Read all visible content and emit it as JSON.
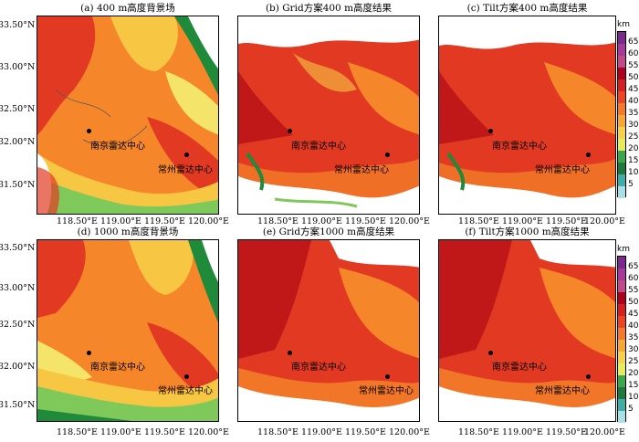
{
  "panels": [
    {
      "id": "a",
      "title": "(a) 400 m高度背景场",
      "type": "background",
      "label1": "南京雷达中心",
      "label2": "常州雷达中心"
    },
    {
      "id": "b",
      "title": "(b) Grid方案400 m高度结果",
      "type": "grid",
      "label1": "南京雷达中心",
      "label2": "常州雷达中心"
    },
    {
      "id": "c",
      "title": "(c) Tilt方案400 m高度结果",
      "type": "grid",
      "label1": "南京雷达中心",
      "label2": "常州雷达中心"
    },
    {
      "id": "d",
      "title": "(d) 1000 m高度背景场",
      "type": "background",
      "label1": "南京雷达中心",
      "label2": "常州雷达中心"
    },
    {
      "id": "e",
      "title": "(e) Grid方案1000 m高度结果",
      "type": "grid",
      "label1": "南京雷达中心",
      "label2": "常州雷达中心"
    },
    {
      "id": "f",
      "title": "(f) Tilt方案1000 m高度结果",
      "type": "grid",
      "label1": "南京雷达中心",
      "label2": "常州雷达中心"
    }
  ],
  "y_axis_labels": [
    "33.50°N",
    "33.00°N",
    "32.50°N",
    "32.00°N",
    "31.50°N"
  ],
  "x_axis_labels": [
    "118.50°E",
    "119.00°E",
    "119.50°E",
    "120.00°E"
  ],
  "colorbar": {
    "unit": "km",
    "ticks": [
      "65",
      "60",
      "55",
      "50",
      "45",
      "40",
      "35",
      "30",
      "25",
      "20",
      "15",
      "10",
      "5"
    ],
    "colors": [
      "#7a2a8c",
      "#a63a9c",
      "#c24a8a",
      "#b00020",
      "#d82020",
      "#ee4422",
      "#f47a2a",
      "#f7a834",
      "#f6d24a",
      "#e6ec5a",
      "#3aa84a",
      "#1e7a3a",
      "#3cb0a8",
      "#a8e0e8"
    ]
  },
  "colors": {
    "red": "#e23a22",
    "darkred": "#c01818",
    "orange": "#f5862a",
    "yellow": "#f7c744",
    "lightyellow": "#f4e46a",
    "green": "#1f8a3a",
    "lightgreen": "#7fc85a",
    "white": "#ffffff"
  }
}
